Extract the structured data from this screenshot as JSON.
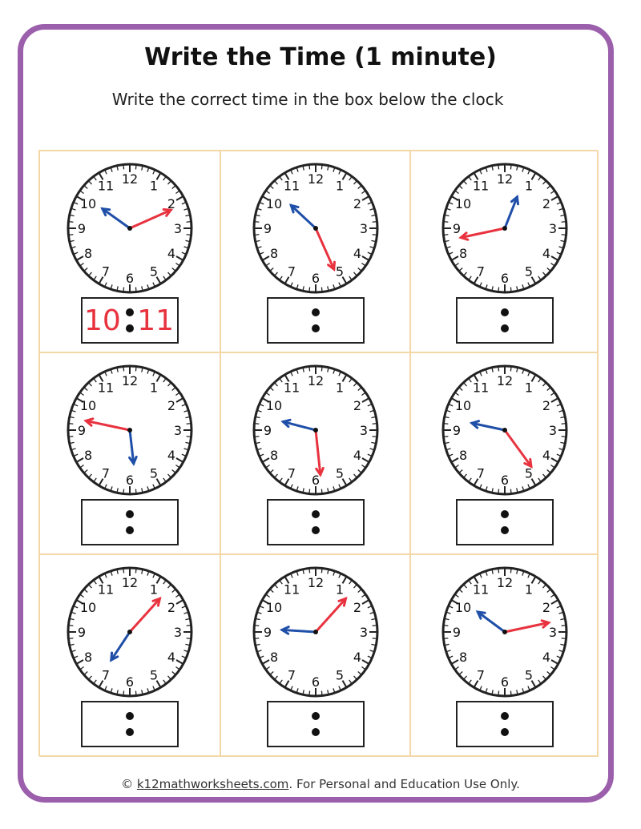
{
  "title": "Write the Time  (1 minute)",
  "subtitle": "Write the correct time in the box below the clock",
  "colors": {
    "frame": "#9b5fab",
    "grid": "#f3d7a6",
    "hour_hand": "#1f4fa8",
    "minute_hand": "#e8333f",
    "answer_text": "#e8333f"
  },
  "clock_numbers": [
    "12",
    "1",
    "2",
    "3",
    "4",
    "5",
    "6",
    "7",
    "8",
    "9",
    "10",
    "11"
  ],
  "clocks": [
    {
      "hour": 10,
      "minute": 11,
      "answer": {
        "hour": "10",
        "minute": "11"
      }
    },
    {
      "hour": 10,
      "minute": 26
    },
    {
      "hour": 12,
      "minute": 43
    },
    {
      "hour": 5,
      "minute": 47
    },
    {
      "hour": 9,
      "minute": 29
    },
    {
      "hour": 9,
      "minute": 24
    },
    {
      "hour": 7,
      "minute": 7
    },
    {
      "hour": 9,
      "minute": 7
    },
    {
      "hour": 10,
      "minute": 13
    }
  ],
  "footer": {
    "prefix": "© ",
    "link": "k12mathworksheets.com",
    "suffix": ". For Personal and Education Use Only."
  }
}
